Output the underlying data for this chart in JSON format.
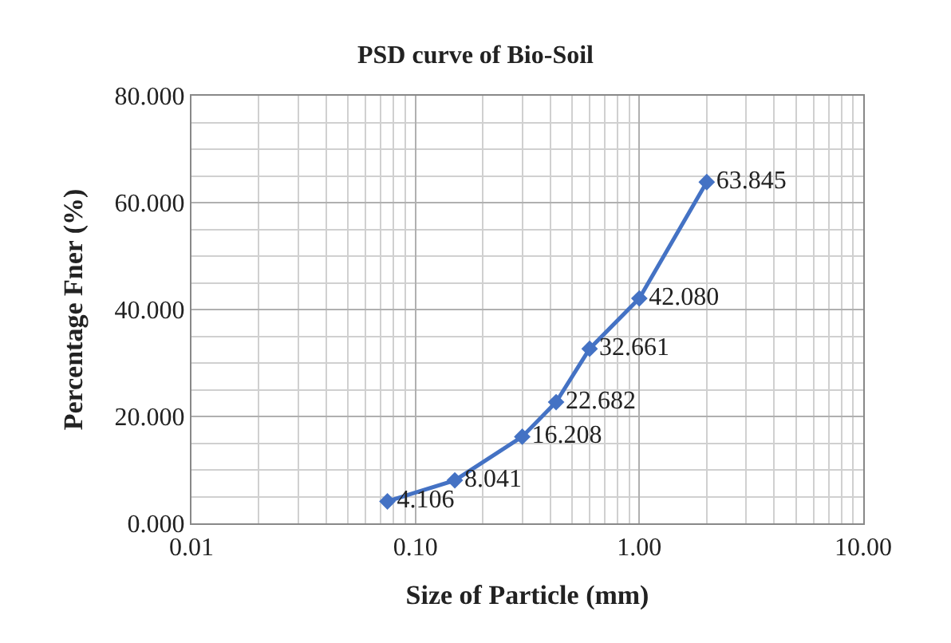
{
  "chart_data": {
    "type": "line",
    "title": "PSD curve of Bio-Soil",
    "xlabel": "Size of Particle (mm)",
    "ylabel": "Percentage Fner (%)",
    "x": [
      0.075,
      0.15,
      0.3,
      0.425,
      0.6,
      1.0,
      2.0
    ],
    "series": [
      {
        "color": "#4472c4",
        "values": [
          4.106,
          8.041,
          16.208,
          22.682,
          32.661,
          42.08,
          63.845
        ],
        "value_labels": [
          "4.106",
          "8.041",
          "16.208",
          "22.682",
          "32.661",
          "42.080",
          "63.845"
        ]
      }
    ],
    "log": "x",
    "xlim": [
      0.01,
      10
    ],
    "xticks": [
      {
        "value": 0.01,
        "label": "0.01"
      },
      {
        "value": 0.1,
        "label": "0.10"
      },
      {
        "value": 1,
        "label": "1.00"
      },
      {
        "value": 10,
        "label": "10.00"
      }
    ],
    "ylim": [
      0,
      80
    ],
    "yticks": [
      {
        "value": 0,
        "label": "0.000"
      },
      {
        "value": 20,
        "label": "20.000"
      },
      {
        "value": 40,
        "label": "40.000"
      },
      {
        "value": 60,
        "label": "60.000"
      },
      {
        "value": 80,
        "label": "80.000"
      }
    ],
    "grid": true,
    "legend": false,
    "marker": "diamond",
    "line_style": "solid"
  }
}
